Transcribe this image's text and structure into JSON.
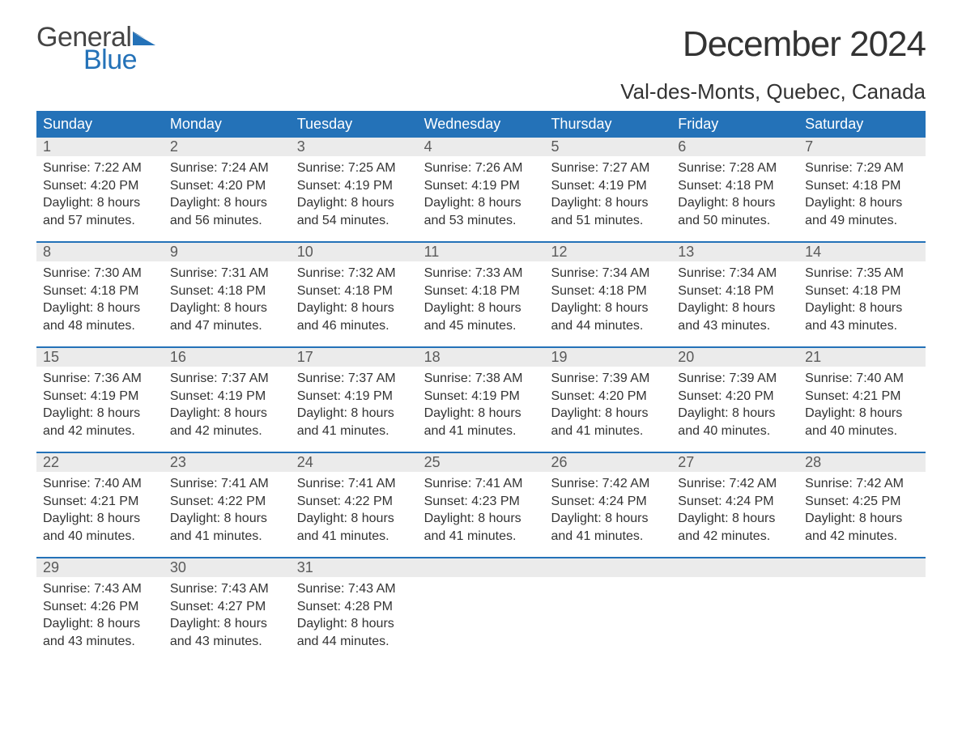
{
  "brand": {
    "general": "General",
    "blue": "Blue"
  },
  "title": "December 2024",
  "location": "Val-des-Monts, Quebec, Canada",
  "colors": {
    "header_bg": "#2472b8",
    "daynum_bg": "#ebebeb",
    "text": "#333333",
    "border": "#2472b8"
  },
  "weekdays": [
    "Sunday",
    "Monday",
    "Tuesday",
    "Wednesday",
    "Thursday",
    "Friday",
    "Saturday"
  ],
  "labels": {
    "sunrise": "Sunrise:",
    "sunset": "Sunset:",
    "daylight": "Daylight:"
  },
  "days": [
    {
      "n": 1,
      "sunrise": "7:22 AM",
      "sunset": "4:20 PM",
      "daylight": "8 hours and 57 minutes."
    },
    {
      "n": 2,
      "sunrise": "7:24 AM",
      "sunset": "4:20 PM",
      "daylight": "8 hours and 56 minutes."
    },
    {
      "n": 3,
      "sunrise": "7:25 AM",
      "sunset": "4:19 PM",
      "daylight": "8 hours and 54 minutes."
    },
    {
      "n": 4,
      "sunrise": "7:26 AM",
      "sunset": "4:19 PM",
      "daylight": "8 hours and 53 minutes."
    },
    {
      "n": 5,
      "sunrise": "7:27 AM",
      "sunset": "4:19 PM",
      "daylight": "8 hours and 51 minutes."
    },
    {
      "n": 6,
      "sunrise": "7:28 AM",
      "sunset": "4:18 PM",
      "daylight": "8 hours and 50 minutes."
    },
    {
      "n": 7,
      "sunrise": "7:29 AM",
      "sunset": "4:18 PM",
      "daylight": "8 hours and 49 minutes."
    },
    {
      "n": 8,
      "sunrise": "7:30 AM",
      "sunset": "4:18 PM",
      "daylight": "8 hours and 48 minutes."
    },
    {
      "n": 9,
      "sunrise": "7:31 AM",
      "sunset": "4:18 PM",
      "daylight": "8 hours and 47 minutes."
    },
    {
      "n": 10,
      "sunrise": "7:32 AM",
      "sunset": "4:18 PM",
      "daylight": "8 hours and 46 minutes."
    },
    {
      "n": 11,
      "sunrise": "7:33 AM",
      "sunset": "4:18 PM",
      "daylight": "8 hours and 45 minutes."
    },
    {
      "n": 12,
      "sunrise": "7:34 AM",
      "sunset": "4:18 PM",
      "daylight": "8 hours and 44 minutes."
    },
    {
      "n": 13,
      "sunrise": "7:34 AM",
      "sunset": "4:18 PM",
      "daylight": "8 hours and 43 minutes."
    },
    {
      "n": 14,
      "sunrise": "7:35 AM",
      "sunset": "4:18 PM",
      "daylight": "8 hours and 43 minutes."
    },
    {
      "n": 15,
      "sunrise": "7:36 AM",
      "sunset": "4:19 PM",
      "daylight": "8 hours and 42 minutes."
    },
    {
      "n": 16,
      "sunrise": "7:37 AM",
      "sunset": "4:19 PM",
      "daylight": "8 hours and 42 minutes."
    },
    {
      "n": 17,
      "sunrise": "7:37 AM",
      "sunset": "4:19 PM",
      "daylight": "8 hours and 41 minutes."
    },
    {
      "n": 18,
      "sunrise": "7:38 AM",
      "sunset": "4:19 PM",
      "daylight": "8 hours and 41 minutes."
    },
    {
      "n": 19,
      "sunrise": "7:39 AM",
      "sunset": "4:20 PM",
      "daylight": "8 hours and 41 minutes."
    },
    {
      "n": 20,
      "sunrise": "7:39 AM",
      "sunset": "4:20 PM",
      "daylight": "8 hours and 40 minutes."
    },
    {
      "n": 21,
      "sunrise": "7:40 AM",
      "sunset": "4:21 PM",
      "daylight": "8 hours and 40 minutes."
    },
    {
      "n": 22,
      "sunrise": "7:40 AM",
      "sunset": "4:21 PM",
      "daylight": "8 hours and 40 minutes."
    },
    {
      "n": 23,
      "sunrise": "7:41 AM",
      "sunset": "4:22 PM",
      "daylight": "8 hours and 41 minutes."
    },
    {
      "n": 24,
      "sunrise": "7:41 AM",
      "sunset": "4:22 PM",
      "daylight": "8 hours and 41 minutes."
    },
    {
      "n": 25,
      "sunrise": "7:41 AM",
      "sunset": "4:23 PM",
      "daylight": "8 hours and 41 minutes."
    },
    {
      "n": 26,
      "sunrise": "7:42 AM",
      "sunset": "4:24 PM",
      "daylight": "8 hours and 41 minutes."
    },
    {
      "n": 27,
      "sunrise": "7:42 AM",
      "sunset": "4:24 PM",
      "daylight": "8 hours and 42 minutes."
    },
    {
      "n": 28,
      "sunrise": "7:42 AM",
      "sunset": "4:25 PM",
      "daylight": "8 hours and 42 minutes."
    },
    {
      "n": 29,
      "sunrise": "7:43 AM",
      "sunset": "4:26 PM",
      "daylight": "8 hours and 43 minutes."
    },
    {
      "n": 30,
      "sunrise": "7:43 AM",
      "sunset": "4:27 PM",
      "daylight": "8 hours and 43 minutes."
    },
    {
      "n": 31,
      "sunrise": "7:43 AM",
      "sunset": "4:28 PM",
      "daylight": "8 hours and 44 minutes."
    }
  ]
}
